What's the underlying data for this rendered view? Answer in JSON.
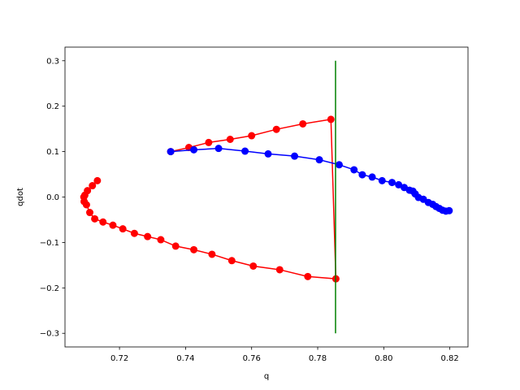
{
  "chart_data": {
    "type": "line",
    "title": "",
    "xlabel": "q",
    "ylabel": "qdot",
    "xlim": [
      0.7035,
      0.8255
    ],
    "ylim": [
      -0.33,
      0.33
    ],
    "xticks": [
      0.72,
      0.74,
      0.76,
      0.78,
      0.8,
      0.82
    ],
    "xtick_labels": [
      "0.72",
      "0.74",
      "0.76",
      "0.78",
      "0.80",
      "0.82"
    ],
    "yticks": [
      -0.3,
      -0.2,
      -0.1,
      0.0,
      0.1,
      0.2,
      0.3
    ],
    "ytick_labels": [
      "−0.3",
      "−0.2",
      "−0.1",
      "0.0",
      "0.1",
      "0.2",
      "0.3"
    ],
    "grid": false,
    "series": [
      {
        "color": "#ff0000",
        "marker": "circle",
        "x": [
          0.7355,
          0.741,
          0.747,
          0.7535,
          0.76,
          0.7675,
          0.7755,
          0.784,
          0.7855,
          0.777,
          0.7685,
          0.7605,
          0.754,
          0.748,
          0.7425,
          0.737,
          0.7325,
          0.7285,
          0.7245,
          0.721,
          0.718,
          0.715,
          0.7125,
          0.711,
          0.71,
          0.7093,
          0.7092,
          0.7095,
          0.7103,
          0.7118,
          0.7133
        ],
        "y": [
          0.1,
          0.109,
          0.12,
          0.127,
          0.135,
          0.149,
          0.161,
          0.171,
          -0.18,
          -0.175,
          -0.16,
          -0.152,
          -0.14,
          -0.126,
          -0.116,
          -0.108,
          -0.094,
          -0.087,
          -0.08,
          -0.07,
          -0.062,
          -0.055,
          -0.048,
          -0.034,
          -0.017,
          -0.01,
          0.0,
          0.004,
          0.014,
          0.025,
          0.036
        ]
      },
      {
        "color": "#0000ff",
        "marker": "circle",
        "x": [
          0.7355,
          0.7425,
          0.75,
          0.758,
          0.765,
          0.773,
          0.7805,
          0.7865,
          0.791,
          0.7935,
          0.7965,
          0.7995,
          0.8025,
          0.8045,
          0.8062,
          0.8078,
          0.8088,
          0.8095,
          0.8105,
          0.812,
          0.8135,
          0.8148,
          0.8158,
          0.8168,
          0.8178,
          0.8188,
          0.8198
        ],
        "y": [
          0.1,
          0.104,
          0.107,
          0.101,
          0.095,
          0.09,
          0.082,
          0.071,
          0.06,
          0.049,
          0.044,
          0.036,
          0.032,
          0.027,
          0.021,
          0.015,
          0.013,
          0.007,
          -0.001,
          -0.005,
          -0.012,
          -0.016,
          -0.021,
          -0.025,
          -0.029,
          -0.031,
          -0.03
        ]
      },
      {
        "color": "#008000",
        "marker": "none",
        "x": [
          0.7854,
          0.7854
        ],
        "y": [
          0.3,
          -0.3
        ]
      }
    ]
  }
}
